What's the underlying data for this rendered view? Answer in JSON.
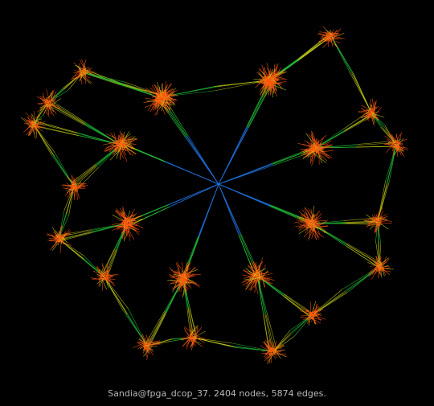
{
  "caption": "Sandia@fpga_dcop_37. 2404 nodes, 5874 edges.",
  "colors": {
    "background": "#000000",
    "hub_edge": "#1e6fd6",
    "mid_edge": "#22c43a",
    "outer_edge": "#c9d21a",
    "cluster": "#ff5a10",
    "caption": "#b8b8b8"
  }
}
